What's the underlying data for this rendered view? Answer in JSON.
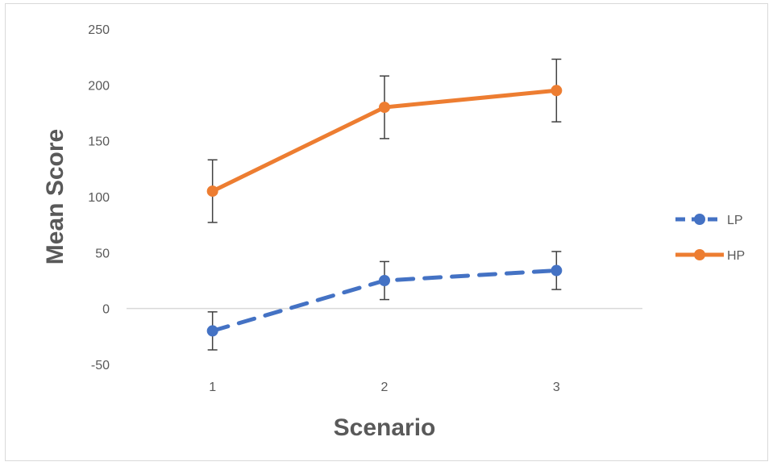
{
  "chart_data": {
    "type": "line",
    "title": "",
    "xlabel": "Scenario",
    "ylabel": "Mean Score",
    "categories": [
      "1",
      "2",
      "3"
    ],
    "ylim": [
      -50,
      250
    ],
    "yticks": [
      250,
      200,
      150,
      100,
      50,
      0,
      -50
    ],
    "grid": false,
    "legend_position": "right",
    "series": [
      {
        "name": "LP",
        "values": [
          -20,
          25,
          34
        ],
        "error": [
          17,
          17,
          17
        ],
        "color": "#4472C4",
        "line_style": "dashed",
        "marker": "circle"
      },
      {
        "name": "HP",
        "values": [
          105,
          180,
          195
        ],
        "error": [
          28,
          28,
          28
        ],
        "color": "#ED7D31",
        "line_style": "solid",
        "marker": "circle"
      }
    ],
    "error_bar_color": "#404040",
    "axis_line_color": "#d9d9d9"
  }
}
